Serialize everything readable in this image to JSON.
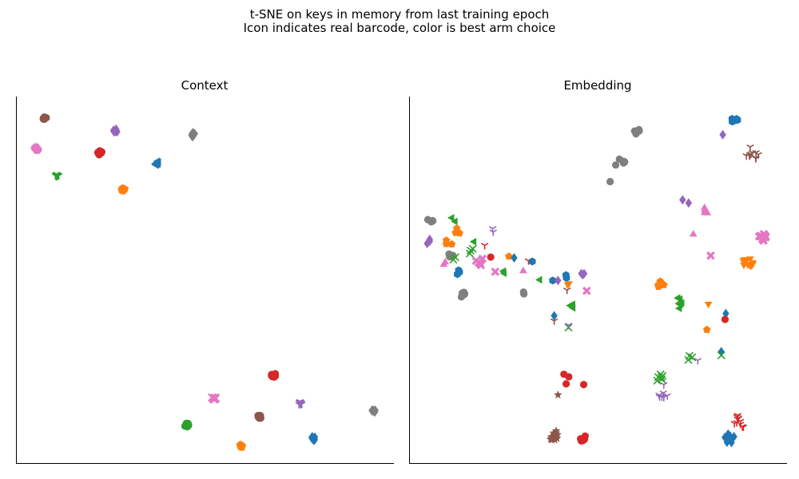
{
  "suptitle": {
    "line1": "t-SNE on keys in memory from last training epoch",
    "line2": "Icon indicates real barcode, color is best arm choice"
  },
  "palette": {
    "blue": "#1f77b4",
    "orange": "#ff7f0e",
    "green": "#2ca02c",
    "red": "#d62728",
    "purple": "#9467bd",
    "brown": "#8c564b",
    "pink": "#e377c2",
    "gray": "#7f7f7f"
  },
  "chart_data": [
    {
      "type": "scatter",
      "title": "Context",
      "xlabel": "",
      "ylabel": "",
      "xlim": [
        0,
        100
      ],
      "ylim": [
        0,
        100
      ],
      "ticks": false,
      "grid": false,
      "points": [
        {
          "x": 7.6,
          "y": 94.0,
          "color": "brown",
          "marker": "circle",
          "n": 10,
          "spread": 0.5
        },
        {
          "x": 26.2,
          "y": 90.6,
          "color": "purple",
          "marker": "diamond",
          "n": 10,
          "spread": 0.6
        },
        {
          "x": 46.8,
          "y": 89.6,
          "color": "gray",
          "marker": "diamond",
          "n": 10,
          "spread": 0.6
        },
        {
          "x": 5.4,
          "y": 85.8,
          "color": "pink",
          "marker": "circle",
          "n": 10,
          "spread": 0.6
        },
        {
          "x": 22.2,
          "y": 84.6,
          "color": "red",
          "marker": "circle",
          "n": 10,
          "spread": 0.6
        },
        {
          "x": 37.4,
          "y": 81.8,
          "color": "blue",
          "marker": "tri_left",
          "n": 10,
          "spread": 0.6
        },
        {
          "x": 10.8,
          "y": 78.4,
          "color": "green",
          "marker": "tri_down_open",
          "n": 10,
          "spread": 0.6
        },
        {
          "x": 28.4,
          "y": 74.6,
          "color": "orange",
          "marker": "pentagon",
          "n": 10,
          "spread": 0.5
        },
        {
          "x": 68.2,
          "y": 24.0,
          "color": "red",
          "marker": "circle",
          "n": 10,
          "spread": 0.6
        },
        {
          "x": 52.4,
          "y": 17.8,
          "color": "pink",
          "marker": "x",
          "n": 10,
          "spread": 0.6
        },
        {
          "x": 75.2,
          "y": 16.2,
          "color": "purple",
          "marker": "tri_down_open",
          "n": 10,
          "spread": 0.6
        },
        {
          "x": 94.6,
          "y": 14.2,
          "color": "gray",
          "marker": "diamond",
          "n": 10,
          "spread": 0.6
        },
        {
          "x": 64.4,
          "y": 12.6,
          "color": "brown",
          "marker": "circle",
          "n": 10,
          "spread": 0.5
        },
        {
          "x": 45.2,
          "y": 10.4,
          "color": "green",
          "marker": "circle",
          "n": 10,
          "spread": 0.6
        },
        {
          "x": 78.8,
          "y": 6.8,
          "color": "blue",
          "marker": "diamond",
          "n": 10,
          "spread": 0.6
        },
        {
          "x": 59.6,
          "y": 4.6,
          "color": "orange",
          "marker": "pentagon",
          "n": 10,
          "spread": 0.5
        }
      ]
    },
    {
      "type": "scatter",
      "title": "Embedding",
      "xlabel": "",
      "ylabel": "",
      "xlim": [
        0,
        100
      ],
      "ylim": [
        0,
        100
      ],
      "ticks": false,
      "grid": false,
      "points": [
        {
          "x": 86.2,
          "y": 93.6,
          "color": "blue",
          "marker": "hexagon",
          "n": 7,
          "spread": 1.0
        },
        {
          "x": 83.0,
          "y": 89.6,
          "color": "purple",
          "marker": "diamond",
          "n": 1,
          "spread": 0
        },
        {
          "x": 90.8,
          "y": 84.6,
          "color": "brown",
          "marker": "tri_down_open",
          "n": 10,
          "spread": 1.8
        },
        {
          "x": 60.4,
          "y": 90.6,
          "color": "gray",
          "marker": "circle",
          "n": 5,
          "spread": 1.0
        },
        {
          "x": 56.2,
          "y": 81.6,
          "color": "gray",
          "marker": "circle",
          "n": 7,
          "spread": 1.6
        },
        {
          "x": 53.2,
          "y": 76.8,
          "color": "gray",
          "marker": "circle",
          "n": 1,
          "spread": 0
        },
        {
          "x": 73.2,
          "y": 71.6,
          "color": "purple",
          "marker": "diamond",
          "n": 2,
          "spread": 1.2
        },
        {
          "x": 78.8,
          "y": 68.8,
          "color": "pink",
          "marker": "triangle",
          "n": 4,
          "spread": 1.2
        },
        {
          "x": 75.2,
          "y": 62.4,
          "color": "pink",
          "marker": "triangle",
          "n": 1,
          "spread": 0
        },
        {
          "x": 93.6,
          "y": 61.6,
          "color": "pink",
          "marker": "x_filled",
          "n": 12,
          "spread": 1.1
        },
        {
          "x": 79.8,
          "y": 56.6,
          "color": "pink",
          "marker": "x_filled",
          "n": 1,
          "spread": 0
        },
        {
          "x": 89.6,
          "y": 54.6,
          "color": "orange",
          "marker": "tri_down",
          "n": 12,
          "spread": 1.5
        },
        {
          "x": 66.4,
          "y": 48.6,
          "color": "orange",
          "marker": "pentagon",
          "n": 8,
          "spread": 1.0
        },
        {
          "x": 71.6,
          "y": 43.6,
          "color": "green",
          "marker": "tri_left",
          "n": 8,
          "spread": 1.5
        },
        {
          "x": 79.2,
          "y": 43.4,
          "color": "orange",
          "marker": "tri_down",
          "n": 1,
          "spread": 0
        },
        {
          "x": 83.8,
          "y": 40.8,
          "color": "blue",
          "marker": "diamond",
          "n": 1,
          "spread": 0
        },
        {
          "x": 83.6,
          "y": 39.2,
          "color": "red",
          "marker": "circle",
          "n": 1,
          "spread": 0
        },
        {
          "x": 78.8,
          "y": 36.4,
          "color": "orange",
          "marker": "pentagon",
          "n": 1,
          "spread": 0
        },
        {
          "x": 82.6,
          "y": 30.4,
          "color": "blue",
          "marker": "diamond",
          "n": 1,
          "spread": 0
        },
        {
          "x": 82.6,
          "y": 29.4,
          "color": "green",
          "marker": "x",
          "n": 1,
          "spread": 0
        },
        {
          "x": 74.2,
          "y": 28.4,
          "color": "green",
          "marker": "x",
          "n": 3,
          "spread": 1.2
        },
        {
          "x": 76.4,
          "y": 28.0,
          "color": "purple",
          "marker": "tri_down_open",
          "n": 1,
          "spread": 0
        },
        {
          "x": 66.0,
          "y": 23.6,
          "color": "green",
          "marker": "x",
          "n": 6,
          "spread": 1.4
        },
        {
          "x": 67.4,
          "y": 21.4,
          "color": "purple",
          "marker": "tri_down_open",
          "n": 1,
          "spread": 0
        },
        {
          "x": 67.2,
          "y": 18.6,
          "color": "purple",
          "marker": "tri_down_open",
          "n": 6,
          "spread": 1.2
        },
        {
          "x": 87.6,
          "y": 11.4,
          "color": "red",
          "marker": "tri_down_open",
          "n": 10,
          "spread": 1.8
        },
        {
          "x": 84.6,
          "y": 6.8,
          "color": "blue",
          "marker": "diamond",
          "n": 12,
          "spread": 1.6
        },
        {
          "x": 5.4,
          "y": 65.6,
          "color": "gray",
          "marker": "circle",
          "n": 4,
          "spread": 1.3
        },
        {
          "x": 11.8,
          "y": 66.6,
          "color": "green",
          "marker": "tri_left",
          "n": 2,
          "spread": 0.8
        },
        {
          "x": 12.6,
          "y": 63.2,
          "color": "orange",
          "marker": "pentagon",
          "n": 3,
          "spread": 1.2
        },
        {
          "x": 5.2,
          "y": 60.4,
          "color": "purple",
          "marker": "diamond",
          "n": 3,
          "spread": 0.8
        },
        {
          "x": 22.4,
          "y": 63.6,
          "color": "purple",
          "marker": "tri_down_open",
          "n": 2,
          "spread": 0.6
        },
        {
          "x": 17.2,
          "y": 60.4,
          "color": "green",
          "marker": "tri_left",
          "n": 1,
          "spread": 0
        },
        {
          "x": 10.6,
          "y": 60.2,
          "color": "orange",
          "marker": "pentagon",
          "n": 3,
          "spread": 1.0
        },
        {
          "x": 20.0,
          "y": 59.4,
          "color": "red",
          "marker": "tri_down_open",
          "n": 1,
          "spread": 0
        },
        {
          "x": 16.2,
          "y": 58.0,
          "color": "green",
          "marker": "x",
          "n": 3,
          "spread": 1.0
        },
        {
          "x": 10.6,
          "y": 56.8,
          "color": "gray",
          "marker": "circle",
          "n": 3,
          "spread": 1.0
        },
        {
          "x": 12.0,
          "y": 56.0,
          "color": "green",
          "marker": "x",
          "n": 2,
          "spread": 0.6
        },
        {
          "x": 21.6,
          "y": 56.2,
          "color": "red",
          "marker": "circle",
          "n": 1,
          "spread": 0
        },
        {
          "x": 26.4,
          "y": 56.4,
          "color": "orange",
          "marker": "pentagon",
          "n": 1,
          "spread": 0
        },
        {
          "x": 27.8,
          "y": 56.0,
          "color": "blue",
          "marker": "diamond",
          "n": 1,
          "spread": 0
        },
        {
          "x": 18.6,
          "y": 55.0,
          "color": "pink",
          "marker": "x_filled",
          "n": 5,
          "spread": 1.2
        },
        {
          "x": 9.2,
          "y": 54.4,
          "color": "pink",
          "marker": "triangle",
          "n": 2,
          "spread": 0.6
        },
        {
          "x": 31.6,
          "y": 55.2,
          "color": "red",
          "marker": "tri_down_open",
          "n": 1,
          "spread": 0
        },
        {
          "x": 32.6,
          "y": 55.0,
          "color": "blue",
          "marker": "hexagon",
          "n": 1,
          "spread": 0
        },
        {
          "x": 12.8,
          "y": 51.6,
          "color": "blue",
          "marker": "hexagon",
          "n": 3,
          "spread": 1.3
        },
        {
          "x": 22.8,
          "y": 52.2,
          "color": "pink",
          "marker": "x_filled",
          "n": 1,
          "spread": 0
        },
        {
          "x": 25.8,
          "y": 52.0,
          "color": "green",
          "marker": "tri_left",
          "n": 2,
          "spread": 0.9
        },
        {
          "x": 30.2,
          "y": 52.4,
          "color": "pink",
          "marker": "triangle",
          "n": 1,
          "spread": 0
        },
        {
          "x": 34.6,
          "y": 50.0,
          "color": "green",
          "marker": "tri_left",
          "n": 1,
          "spread": 0
        },
        {
          "x": 38.0,
          "y": 49.8,
          "color": "blue",
          "marker": "hexagon",
          "n": 1,
          "spread": 0
        },
        {
          "x": 39.4,
          "y": 49.8,
          "color": "purple",
          "marker": "diamond",
          "n": 1,
          "spread": 0
        },
        {
          "x": 41.6,
          "y": 51.0,
          "color": "blue",
          "marker": "hexagon",
          "n": 2,
          "spread": 0.8
        },
        {
          "x": 46.0,
          "y": 51.4,
          "color": "purple",
          "marker": "diamond",
          "n": 3,
          "spread": 1.0
        },
        {
          "x": 42.2,
          "y": 48.4,
          "color": "orange",
          "marker": "tri_down",
          "n": 2,
          "spread": 0.6
        },
        {
          "x": 41.8,
          "y": 47.2,
          "color": "brown",
          "marker": "tri_down_open",
          "n": 1,
          "spread": 0
        },
        {
          "x": 47.0,
          "y": 47.0,
          "color": "pink",
          "marker": "x_filled",
          "n": 1,
          "spread": 0
        },
        {
          "x": 14.4,
          "y": 46.2,
          "color": "gray",
          "marker": "circle",
          "n": 5,
          "spread": 1.1
        },
        {
          "x": 30.8,
          "y": 46.4,
          "color": "gray",
          "marker": "circle",
          "n": 2,
          "spread": 0.6
        },
        {
          "x": 43.2,
          "y": 43.0,
          "color": "green",
          "marker": "tri_left",
          "n": 3,
          "spread": 0.8
        },
        {
          "x": 38.4,
          "y": 40.2,
          "color": "blue",
          "marker": "diamond",
          "n": 1,
          "spread": 0
        },
        {
          "x": 38.4,
          "y": 38.8,
          "color": "brown",
          "marker": "tri_down_open",
          "n": 1,
          "spread": 0
        },
        {
          "x": 42.2,
          "y": 37.0,
          "color": "green",
          "marker": "x",
          "n": 1,
          "spread": 0
        },
        {
          "x": 42.2,
          "y": 37.6,
          "color": "purple",
          "marker": "tri_down_open",
          "n": 1,
          "spread": 0
        },
        {
          "x": 41.2,
          "y": 22.8,
          "color": "red",
          "marker": "circle",
          "n": 3,
          "spread": 1.5
        },
        {
          "x": 46.2,
          "y": 21.4,
          "color": "red",
          "marker": "circle",
          "n": 1,
          "spread": 0
        },
        {
          "x": 39.4,
          "y": 18.6,
          "color": "brown",
          "marker": "star",
          "n": 1,
          "spread": 0
        },
        {
          "x": 38.4,
          "y": 7.6,
          "color": "brown",
          "marker": "star",
          "n": 12,
          "spread": 1.5
        },
        {
          "x": 45.8,
          "y": 6.8,
          "color": "red",
          "marker": "circle",
          "n": 6,
          "spread": 1.1
        }
      ]
    }
  ]
}
